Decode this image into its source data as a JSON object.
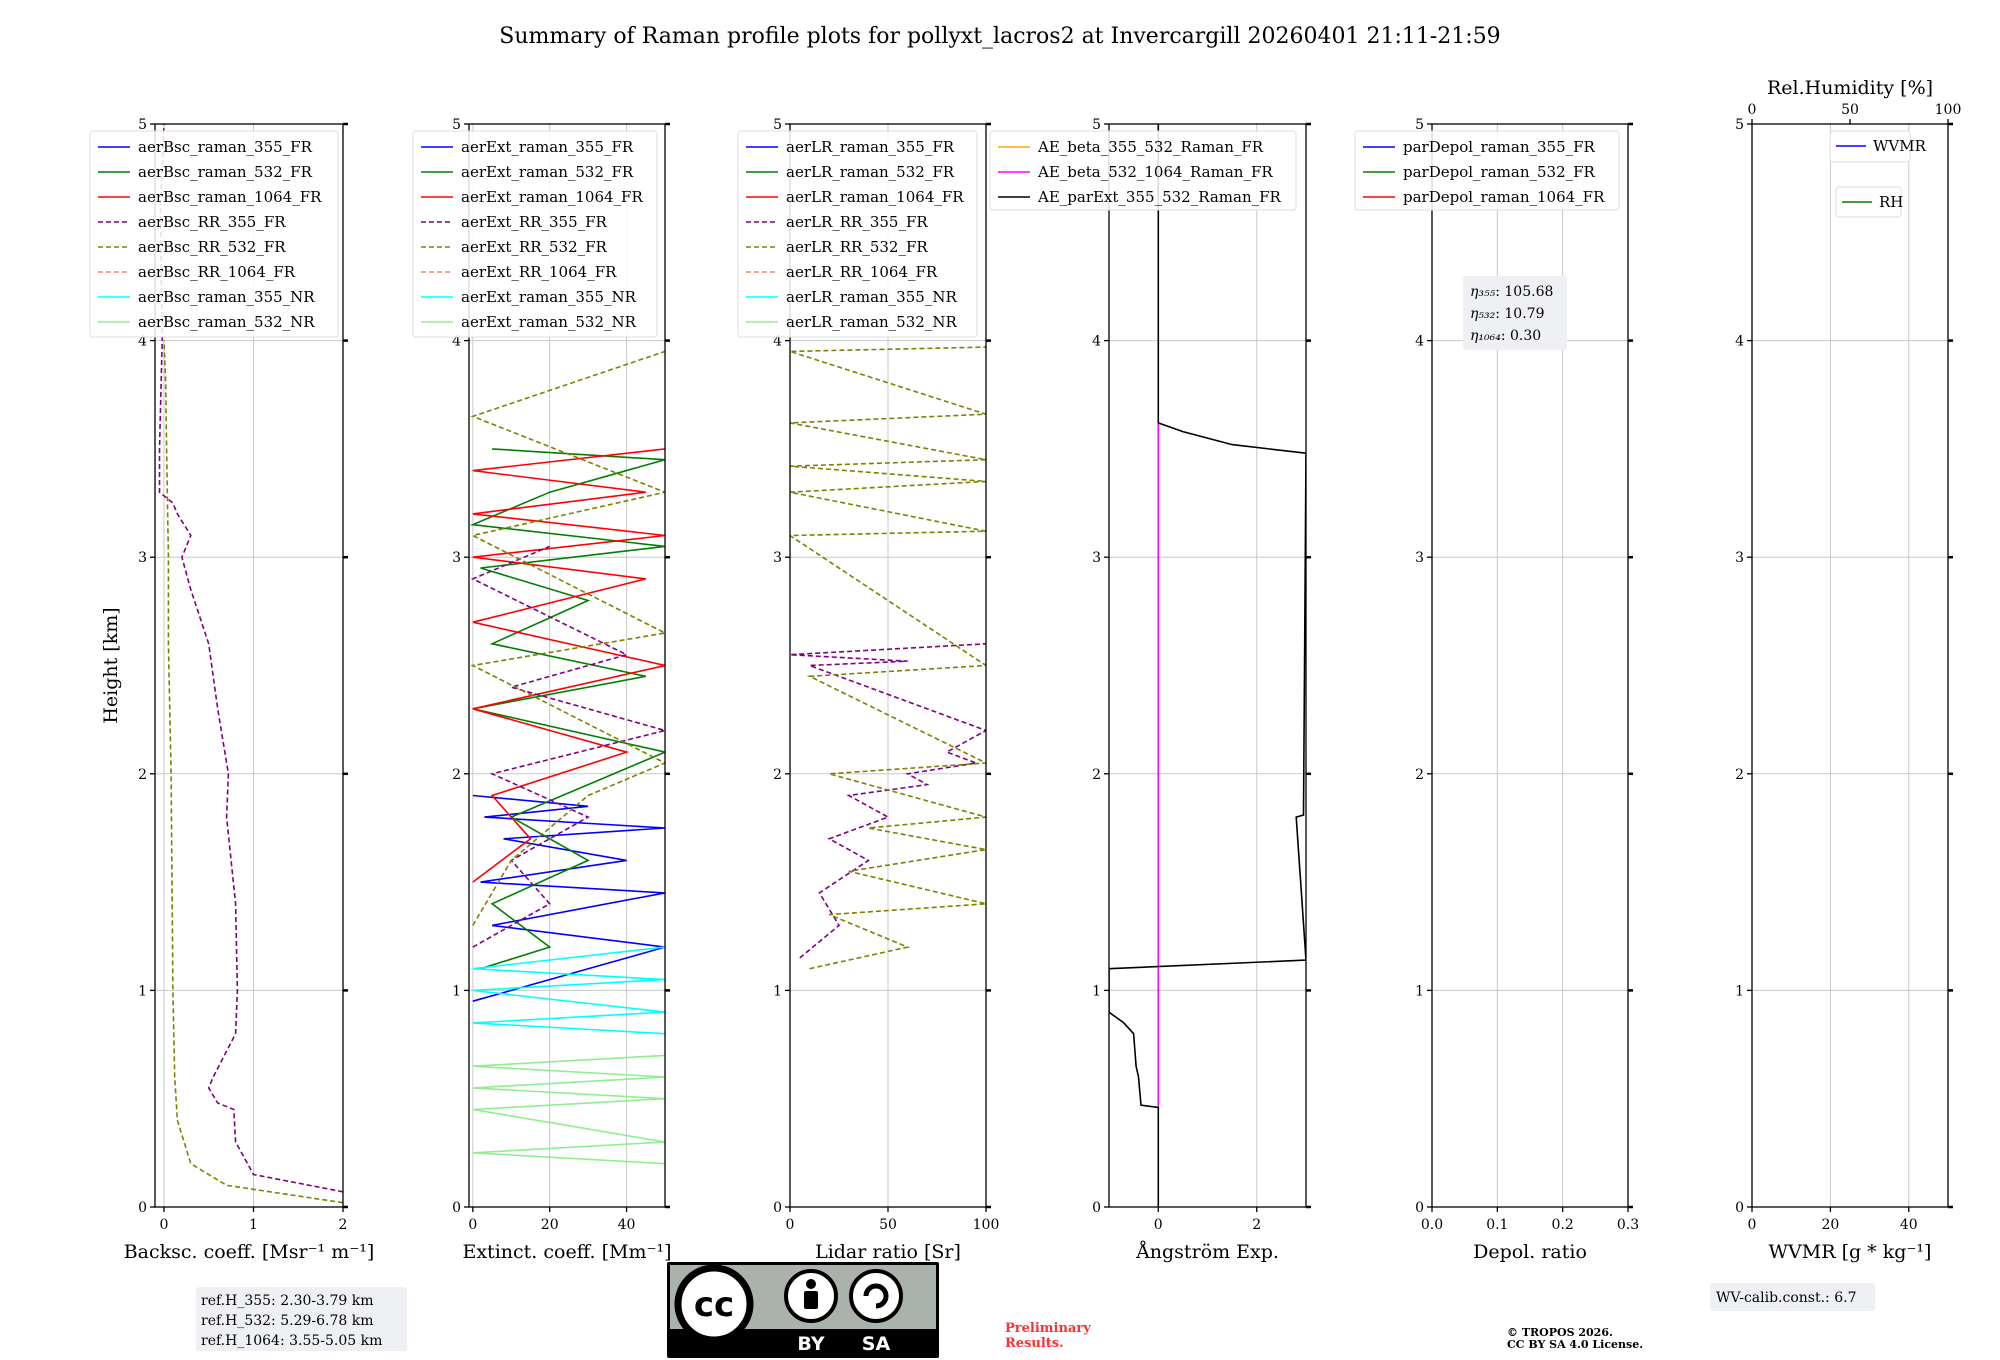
{
  "title": "Summary of Raman profile plots for pollyxt_lacros2 at Invercargill 20260401 21:11-21:59",
  "colors": {
    "blue": "#0000ff",
    "green": "#008000",
    "red": "#ff0000",
    "purple": "#800080",
    "olive": "#808000",
    "salmon": "#fa8072",
    "cyan": "#00ffff",
    "lightgreen": "#90ee90",
    "orange": "#ffa500",
    "magenta": "#ff00ff",
    "black": "#000000"
  },
  "chart_data": [
    {
      "id": "backscatter",
      "type": "line",
      "xlabel": "Backsc. coeff. [Msr⁻¹ m⁻¹]",
      "ylabel": "Height [km]",
      "xlim": [
        -0.1,
        2
      ],
      "ylim": [
        0,
        5
      ],
      "xticks": [
        "0",
        "1",
        "2"
      ],
      "yticks": [
        "0",
        "1",
        "2",
        "3",
        "4",
        "5"
      ],
      "legend": [
        "aerBsc_raman_355_FR",
        "aerBsc_raman_532_FR",
        "aerBsc_raman_1064_FR",
        "aerBsc_RR_355_FR",
        "aerBsc_RR_532_FR",
        "aerBsc_RR_1064_FR",
        "aerBsc_raman_355_NR",
        "aerBsc_raman_532_NR"
      ],
      "series": [
        {
          "name": "aerBsc_RR_355_FR",
          "x": [
            2.0,
            1.0,
            0.8,
            0.78,
            0.6,
            0.5,
            0.55,
            0.8,
            0.82,
            0.8,
            0.75,
            0.7,
            0.72,
            0.6,
            0.5,
            0.3,
            0.2,
            0.3,
            0.15,
            0.1,
            -0.05,
            -0.05,
            -0.02,
            -0.04,
            0.0
          ],
          "y": [
            0.07,
            0.15,
            0.3,
            0.45,
            0.48,
            0.55,
            0.6,
            0.8,
            1.0,
            1.4,
            1.6,
            1.8,
            2.0,
            2.3,
            2.6,
            2.85,
            3.0,
            3.1,
            3.2,
            3.25,
            3.3,
            3.5,
            4.0,
            4.6,
            5.0
          ]
        },
        {
          "name": "aerBsc_RR_532_FR",
          "x": [
            2.0,
            0.7,
            0.3,
            0.15,
            0.12,
            0.1,
            0.08,
            0.05,
            0.05,
            0.03,
            0.02,
            0.0
          ],
          "y": [
            0.02,
            0.1,
            0.2,
            0.4,
            0.6,
            1.0,
            2.0,
            2.6,
            3.0,
            3.5,
            3.8,
            4.0
          ]
        }
      ],
      "box": [
        "ref.H_355: 2.30-3.79 km",
        "ref.H_532: 5.29-6.78 km",
        "ref.H_1064: 3.55-5.05 km"
      ]
    },
    {
      "id": "extinction",
      "type": "line",
      "xlabel": "Extinct. coeff. [Mm⁻¹]",
      "xlim": [
        -1,
        50
      ],
      "ylim": [
        0,
        5
      ],
      "xticks": [
        "0",
        "20",
        "40"
      ],
      "yticks": [
        "0",
        "1",
        "2",
        "3",
        "4",
        "5"
      ],
      "legend": [
        "aerExt_raman_355_FR",
        "aerExt_raman_532_FR",
        "aerExt_raman_1064_FR",
        "aerExt_RR_355_FR",
        "aerExt_RR_532_FR",
        "aerExt_RR_1064_FR",
        "aerExt_raman_355_NR",
        "aerExt_raman_532_NR"
      ],
      "series": [
        {
          "name": "aerExt_raman_355_FR",
          "x": [
            0,
            10,
            50,
            5,
            50,
            2,
            40,
            8,
            50,
            3,
            30,
            0
          ],
          "y": [
            0.95,
            1.0,
            1.2,
            1.3,
            1.45,
            1.5,
            1.6,
            1.7,
            1.75,
            1.8,
            1.85,
            1.9
          ]
        },
        {
          "name": "aerExt_raman_532_FR",
          "x": [
            2,
            20,
            5,
            30,
            10,
            50,
            0,
            45,
            5,
            30,
            2,
            50,
            0,
            20,
            50,
            5
          ],
          "y": [
            1.1,
            1.2,
            1.4,
            1.6,
            1.8,
            2.1,
            2.3,
            2.45,
            2.6,
            2.8,
            2.95,
            3.05,
            3.15,
            3.3,
            3.45,
            3.5
          ]
        },
        {
          "name": "aerExt_raman_1064_FR",
          "x": [
            0,
            15,
            5,
            40,
            0,
            50,
            0,
            45,
            0,
            50,
            0,
            45,
            0,
            50
          ],
          "y": [
            1.5,
            1.7,
            1.9,
            2.1,
            2.3,
            2.5,
            2.7,
            2.9,
            3.0,
            3.1,
            3.2,
            3.3,
            3.4,
            3.5
          ]
        },
        {
          "name": "aerExt_RR_355_FR",
          "x": [
            0,
            20,
            10,
            30,
            5,
            50,
            10,
            40,
            0,
            20
          ],
          "y": [
            1.2,
            1.4,
            1.6,
            1.8,
            2.0,
            2.2,
            2.4,
            2.55,
            2.9,
            3.05
          ]
        },
        {
          "name": "aerExt_RR_532_FR",
          "x": [
            0,
            10,
            30,
            50,
            0,
            50,
            0,
            50,
            0,
            50
          ],
          "y": [
            1.3,
            1.6,
            1.9,
            2.05,
            2.5,
            2.65,
            3.1,
            3.3,
            3.65,
            3.95
          ]
        },
        {
          "name": "aerExt_raman_355_NR",
          "x": [
            50,
            0,
            50,
            0,
            50,
            0,
            50
          ],
          "y": [
            0.8,
            0.85,
            0.9,
            1.0,
            1.05,
            1.1,
            1.2
          ]
        },
        {
          "name": "aerExt_raman_532_NR",
          "x": [
            50,
            0,
            50,
            0,
            50,
            0,
            50,
            0,
            50
          ],
          "y": [
            0.2,
            0.25,
            0.3,
            0.45,
            0.5,
            0.55,
            0.6,
            0.65,
            0.7
          ]
        }
      ]
    },
    {
      "id": "lidar_ratio",
      "type": "line",
      "xlabel": "Lidar ratio [Sr]",
      "xlim": [
        0,
        100
      ],
      "ylim": [
        0,
        5
      ],
      "xticks": [
        "0",
        "50",
        "100"
      ],
      "yticks": [
        "0",
        "1",
        "2",
        "3",
        "4",
        "5"
      ],
      "legend": [
        "aerLR_raman_355_FR",
        "aerLR_raman_532_FR",
        "aerLR_raman_1064_FR",
        "aerLR_RR_355_FR",
        "aerLR_RR_532_FR",
        "aerLR_RR_1064_FR",
        "aerLR_raman_355_NR",
        "aerLR_raman_532_NR"
      ],
      "series": [
        {
          "name": "aerLR_RR_355_FR",
          "x": [
            5,
            25,
            15,
            40,
            20,
            50,
            30,
            70,
            60,
            95,
            80,
            100,
            10,
            60,
            0,
            100
          ],
          "y": [
            1.15,
            1.3,
            1.45,
            1.6,
            1.7,
            1.8,
            1.9,
            1.95,
            2.0,
            2.05,
            2.1,
            2.2,
            2.5,
            2.52,
            2.55,
            2.6
          ]
        },
        {
          "name": "aerLR_RR_532_FR",
          "x": [
            10,
            60,
            20,
            100,
            30,
            100,
            40,
            100,
            20,
            100,
            10,
            100,
            0,
            100,
            0,
            100,
            0,
            100,
            0,
            100,
            0,
            100
          ],
          "y": [
            1.1,
            1.2,
            1.35,
            1.4,
            1.55,
            1.65,
            1.75,
            1.8,
            2.0,
            2.05,
            2.45,
            2.5,
            3.1,
            3.12,
            3.3,
            3.35,
            3.42,
            3.45,
            3.62,
            3.66,
            3.95,
            3.97
          ]
        }
      ]
    },
    {
      "id": "angstrom",
      "type": "line",
      "xlabel": "Ångström Exp.",
      "xlim": [
        -1,
        3
      ],
      "ylim": [
        0,
        5
      ],
      "xticks": [
        "0",
        "2"
      ],
      "yticks": [
        "0",
        "1",
        "2",
        "3",
        "4",
        "5"
      ],
      "legend": [
        "AE_beta_355_532_Raman_FR",
        "AE_beta_532_1064_Raman_FR",
        "AE_parExt_355_532_Raman_FR"
      ],
      "series": [
        {
          "name": "AE_beta_532_1064_Raman_FR",
          "x": [
            0,
            0
          ],
          "y": [
            0.46,
            3.62
          ]
        },
        {
          "name": "AE_parExt_355_532_Raman_FR",
          "x": [
            0,
            0,
            -0.35,
            -0.4,
            -0.45,
            -0.5,
            -0.7,
            -1.0,
            -1.0,
            3.0,
            2.8,
            2.95,
            3.0,
            1.5,
            0.5,
            0,
            0,
            0
          ],
          "y": [
            0,
            0.46,
            0.47,
            0.6,
            0.65,
            0.8,
            0.85,
            0.9,
            1.1,
            1.14,
            1.8,
            1.81,
            3.48,
            3.52,
            3.58,
            3.62,
            4.5,
            5.0
          ]
        }
      ]
    },
    {
      "id": "depolarization",
      "type": "line",
      "xlabel": "Depol. ratio",
      "xlim": [
        0,
        0.3
      ],
      "ylim": [
        0,
        5
      ],
      "xticks": [
        "0.0",
        "0.1",
        "0.2",
        "0.3"
      ],
      "yticks": [
        "0",
        "1",
        "2",
        "3",
        "4",
        "5"
      ],
      "legend": [
        "parDepol_raman_355_FR",
        "parDepol_raman_532_FR",
        "parDepol_raman_1064_FR"
      ],
      "eta_names": [
        "η₃₅₅",
        "η₅₃₂",
        "η₁₀₆₄"
      ],
      "eta_values": [
        ": 105.68",
        ": 10.79",
        ": 0.30"
      ],
      "series": []
    },
    {
      "id": "wvmr",
      "type": "line",
      "xlabel": "WVMR [g * kg⁻¹]",
      "top_xlabel": "Rel.Humidity [%]",
      "xlim": [
        0,
        50
      ],
      "ylim": [
        0,
        5
      ],
      "xticks": [
        "0",
        "20",
        "40"
      ],
      "top_xticks": [
        "0",
        "50",
        "100"
      ],
      "yticks": [
        "0",
        "1",
        "2",
        "3",
        "4",
        "5"
      ],
      "legend": [
        "WVMR",
        "RH"
      ],
      "box": [
        "WV-calib.const.: 6.7"
      ],
      "series": []
    }
  ],
  "footer": {
    "license_by": "BY",
    "license_sa": "SA",
    "license_cc": "cc",
    "preliminary": [
      "Preliminary",
      "Results."
    ],
    "copyright": [
      "© TROPOS 2026.",
      "CC BY SA 4.0 License."
    ]
  }
}
